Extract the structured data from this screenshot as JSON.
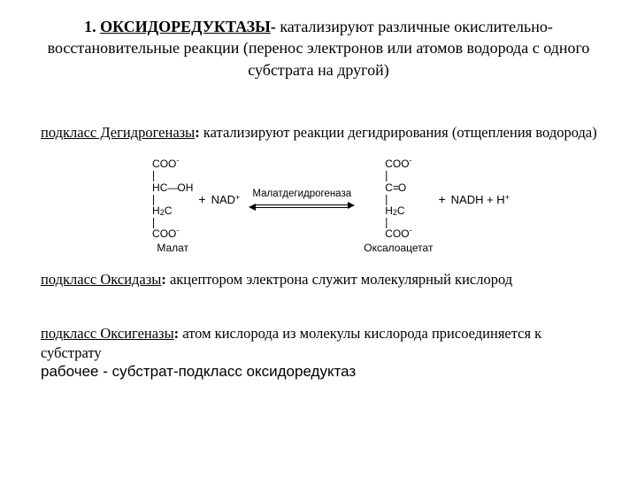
{
  "headline": {
    "number": "1.",
    "term": "ОКСИДОРЕДУКТАЗЫ",
    "dash": "-",
    "rest1": " катализируют различные окислительно-",
    "rest2": "восстановительные реакции (перенос электронов или атомов водорода с одного субстрата на другой)"
  },
  "sub1": {
    "name": "подкласс Дегидрогеназы",
    "colon": ":",
    "text": " катализируют реакции дегидрирования (отщепления водорода)"
  },
  "sub2": {
    "name": "подкласс Оксидазы",
    "colon": ":",
    "text": " акцептором электрона служит молекулярный кислород"
  },
  "sub3": {
    "name": "подкласс Оксигеназы",
    "colon": ":",
    "text": " атом кислорода из молекулы кислорода присоединяется к субстрату"
  },
  "working": "рабочее - субстрат-подкласс оксидоредуктаз",
  "reaction": {
    "enzyme": "Малатдегидрогеназа",
    "left_caption": "Малат",
    "right_caption": "Оксалоацетат",
    "plus": "+",
    "nad": "NAD",
    "nadh_h": "NADH + H",
    "malate": {
      "l1a": "COO",
      "l1sup": "-",
      "bar": "|",
      "l2a": "HC",
      "l2b": "OH",
      "l2dash": "—",
      "l3a": "H",
      "l3sub": "2",
      "l3b": "C",
      "l4a": "COO",
      "l4sup": "-"
    },
    "oaa": {
      "l1a": "COO",
      "l1sup": "-",
      "bar": "|",
      "l2a": "C",
      "l2b": "O",
      "l2eq": "=",
      "l3a": "H",
      "l3sub": "2",
      "l3b": "C",
      "l4a": "COO",
      "l4sup": "-"
    }
  }
}
